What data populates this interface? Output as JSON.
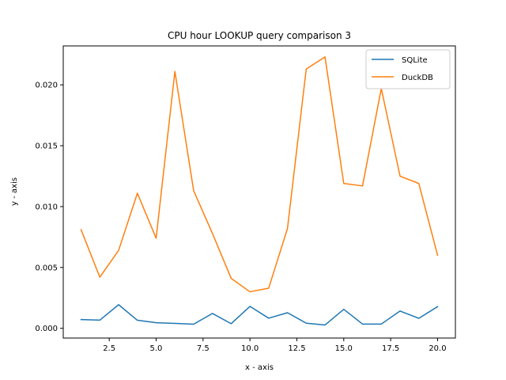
{
  "chart_data": {
    "type": "line",
    "title": "CPU hour LOOKUP query comparison 3",
    "xlabel": "x - axis",
    "ylabel": "y - axis",
    "x": [
      1,
      2,
      3,
      4,
      5,
      6,
      7,
      8,
      9,
      10,
      11,
      12,
      13,
      14,
      15,
      16,
      17,
      18,
      19,
      20
    ],
    "xlim": [
      0.05,
      20.95
    ],
    "ylim": [
      -0.0008,
      0.0232
    ],
    "xticks": [
      2.5,
      5.0,
      7.5,
      10.0,
      12.5,
      15.0,
      17.5,
      20.0
    ],
    "xtick_labels": [
      "2.5",
      "5.0",
      "7.5",
      "10.0",
      "12.5",
      "15.0",
      "17.5",
      "20.0"
    ],
    "yticks": [
      0.0,
      0.005,
      0.01,
      0.015,
      0.02
    ],
    "ytick_labels": [
      "0.000",
      "0.005",
      "0.010",
      "0.015",
      "0.020"
    ],
    "grid": false,
    "legend_position": "upper right",
    "series": [
      {
        "name": "SQLite",
        "color": "#1f77b4",
        "values": [
          0.00072,
          0.00067,
          0.00194,
          0.00066,
          0.00046,
          0.0004,
          0.00034,
          0.00122,
          0.00038,
          0.0018,
          0.00083,
          0.00128,
          0.00042,
          0.00027,
          0.00156,
          0.00035,
          0.00035,
          0.00142,
          0.00082,
          0.00178
        ]
      },
      {
        "name": "DuckDB",
        "color": "#ff7f0e",
        "values": [
          0.0081,
          0.0042,
          0.0064,
          0.0111,
          0.0074,
          0.0211,
          0.0113,
          0.0078,
          0.0041,
          0.003,
          0.0033,
          0.0082,
          0.0213,
          0.0223,
          0.0119,
          0.0117,
          0.0197,
          0.0125,
          0.0119,
          0.006
        ]
      }
    ]
  }
}
